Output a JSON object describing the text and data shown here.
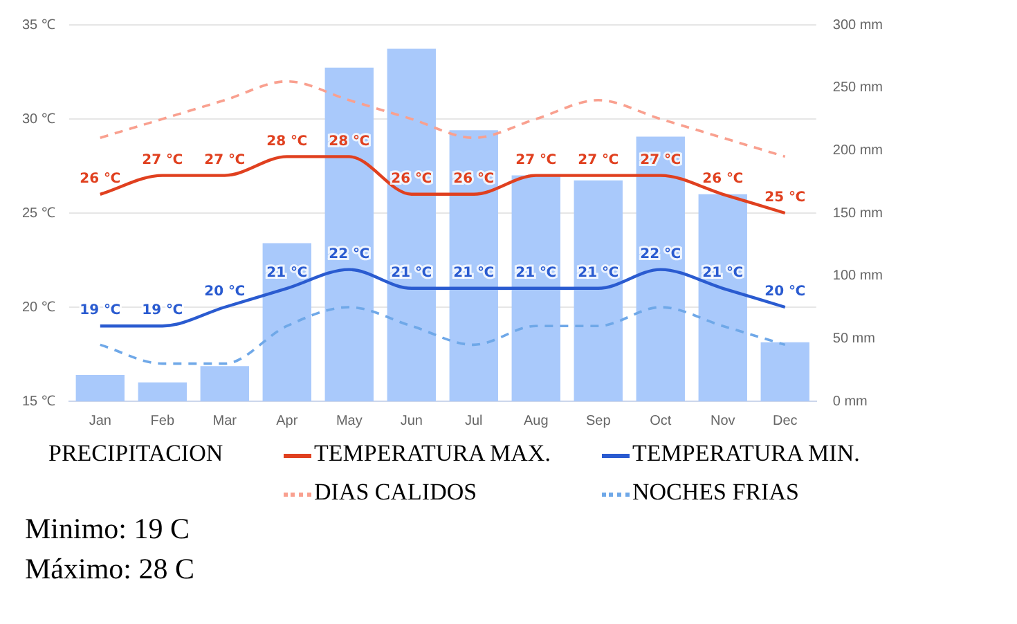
{
  "chart_data": {
    "type": "bar",
    "categories": [
      "Jan",
      "Feb",
      "Mar",
      "Apr",
      "May",
      "Jun",
      "Jul",
      "Aug",
      "Sep",
      "Oct",
      "Nov",
      "Dec"
    ],
    "series": [
      {
        "name": "PRECIPITACION",
        "axis": "y2",
        "color": "#a9c9fb",
        "values": [
          21,
          15,
          28,
          126,
          266,
          281,
          216,
          180,
          176,
          211,
          165,
          47
        ]
      },
      {
        "name": "TEMPERATURA MAX.",
        "type": "line",
        "color": "#e0401f",
        "line_style": "solid",
        "values": [
          26,
          27,
          27,
          28,
          28,
          26,
          26,
          27,
          27,
          27,
          26,
          25
        ],
        "value_labels": [
          "26 ℃",
          "27 ℃",
          "27 ℃",
          "28 ℃",
          "28 ℃",
          "26 ℃",
          "26 ℃",
          "27 ℃",
          "27 ℃",
          "27 ℃",
          "26 ℃",
          "25 ℃"
        ]
      },
      {
        "name": "TEMPERATURA MIN.",
        "type": "line",
        "color": "#2a5bd0",
        "line_style": "solid",
        "values": [
          19,
          19,
          20,
          21,
          22,
          21,
          21,
          21,
          21,
          22,
          21,
          20
        ],
        "value_labels": [
          "19 ℃",
          "19 ℃",
          "20 ℃",
          "21 ℃",
          "22 ℃",
          "21 ℃",
          "21 ℃",
          "21 ℃",
          "21 ℃",
          "22 ℃",
          "21 ℃",
          "20 ℃"
        ]
      },
      {
        "name": "DIAS CALIDOS",
        "type": "line",
        "color": "#f9a08f",
        "line_style": "dashed",
        "values": [
          29,
          30,
          31,
          32,
          31,
          30,
          29,
          30,
          31,
          30,
          29,
          28
        ]
      },
      {
        "name": "NOCHES FRIAS",
        "type": "line",
        "color": "#6fa8e8",
        "line_style": "dashed",
        "values": [
          18,
          17,
          17,
          19,
          20,
          19,
          18,
          19,
          19,
          20,
          19,
          18
        ]
      }
    ],
    "ylim": [
      15,
      35
    ],
    "yticks": [
      {
        "value": 15,
        "label": "15 ℃"
      },
      {
        "value": 20,
        "label": "20 ℃"
      },
      {
        "value": 25,
        "label": "25 ℃"
      },
      {
        "value": 30,
        "label": "30 ℃"
      },
      {
        "value": 35,
        "label": "35 ℃"
      }
    ],
    "y2lim": [
      0,
      300
    ],
    "y2ticks": [
      {
        "value": 0,
        "label": "0 mm"
      },
      {
        "value": 50,
        "label": "50 mm"
      },
      {
        "value": 100,
        "label": "100 mm"
      },
      {
        "value": 150,
        "label": "150 mm"
      },
      {
        "value": 200,
        "label": "200 mm"
      },
      {
        "value": 250,
        "label": "250 mm"
      },
      {
        "value": 300,
        "label": "300 mm"
      }
    ],
    "grid": "y",
    "legend": "bottom",
    "marker": "none",
    "annotations": [
      "Minimo: 19 C",
      "Máximo: 28 C"
    ]
  }
}
